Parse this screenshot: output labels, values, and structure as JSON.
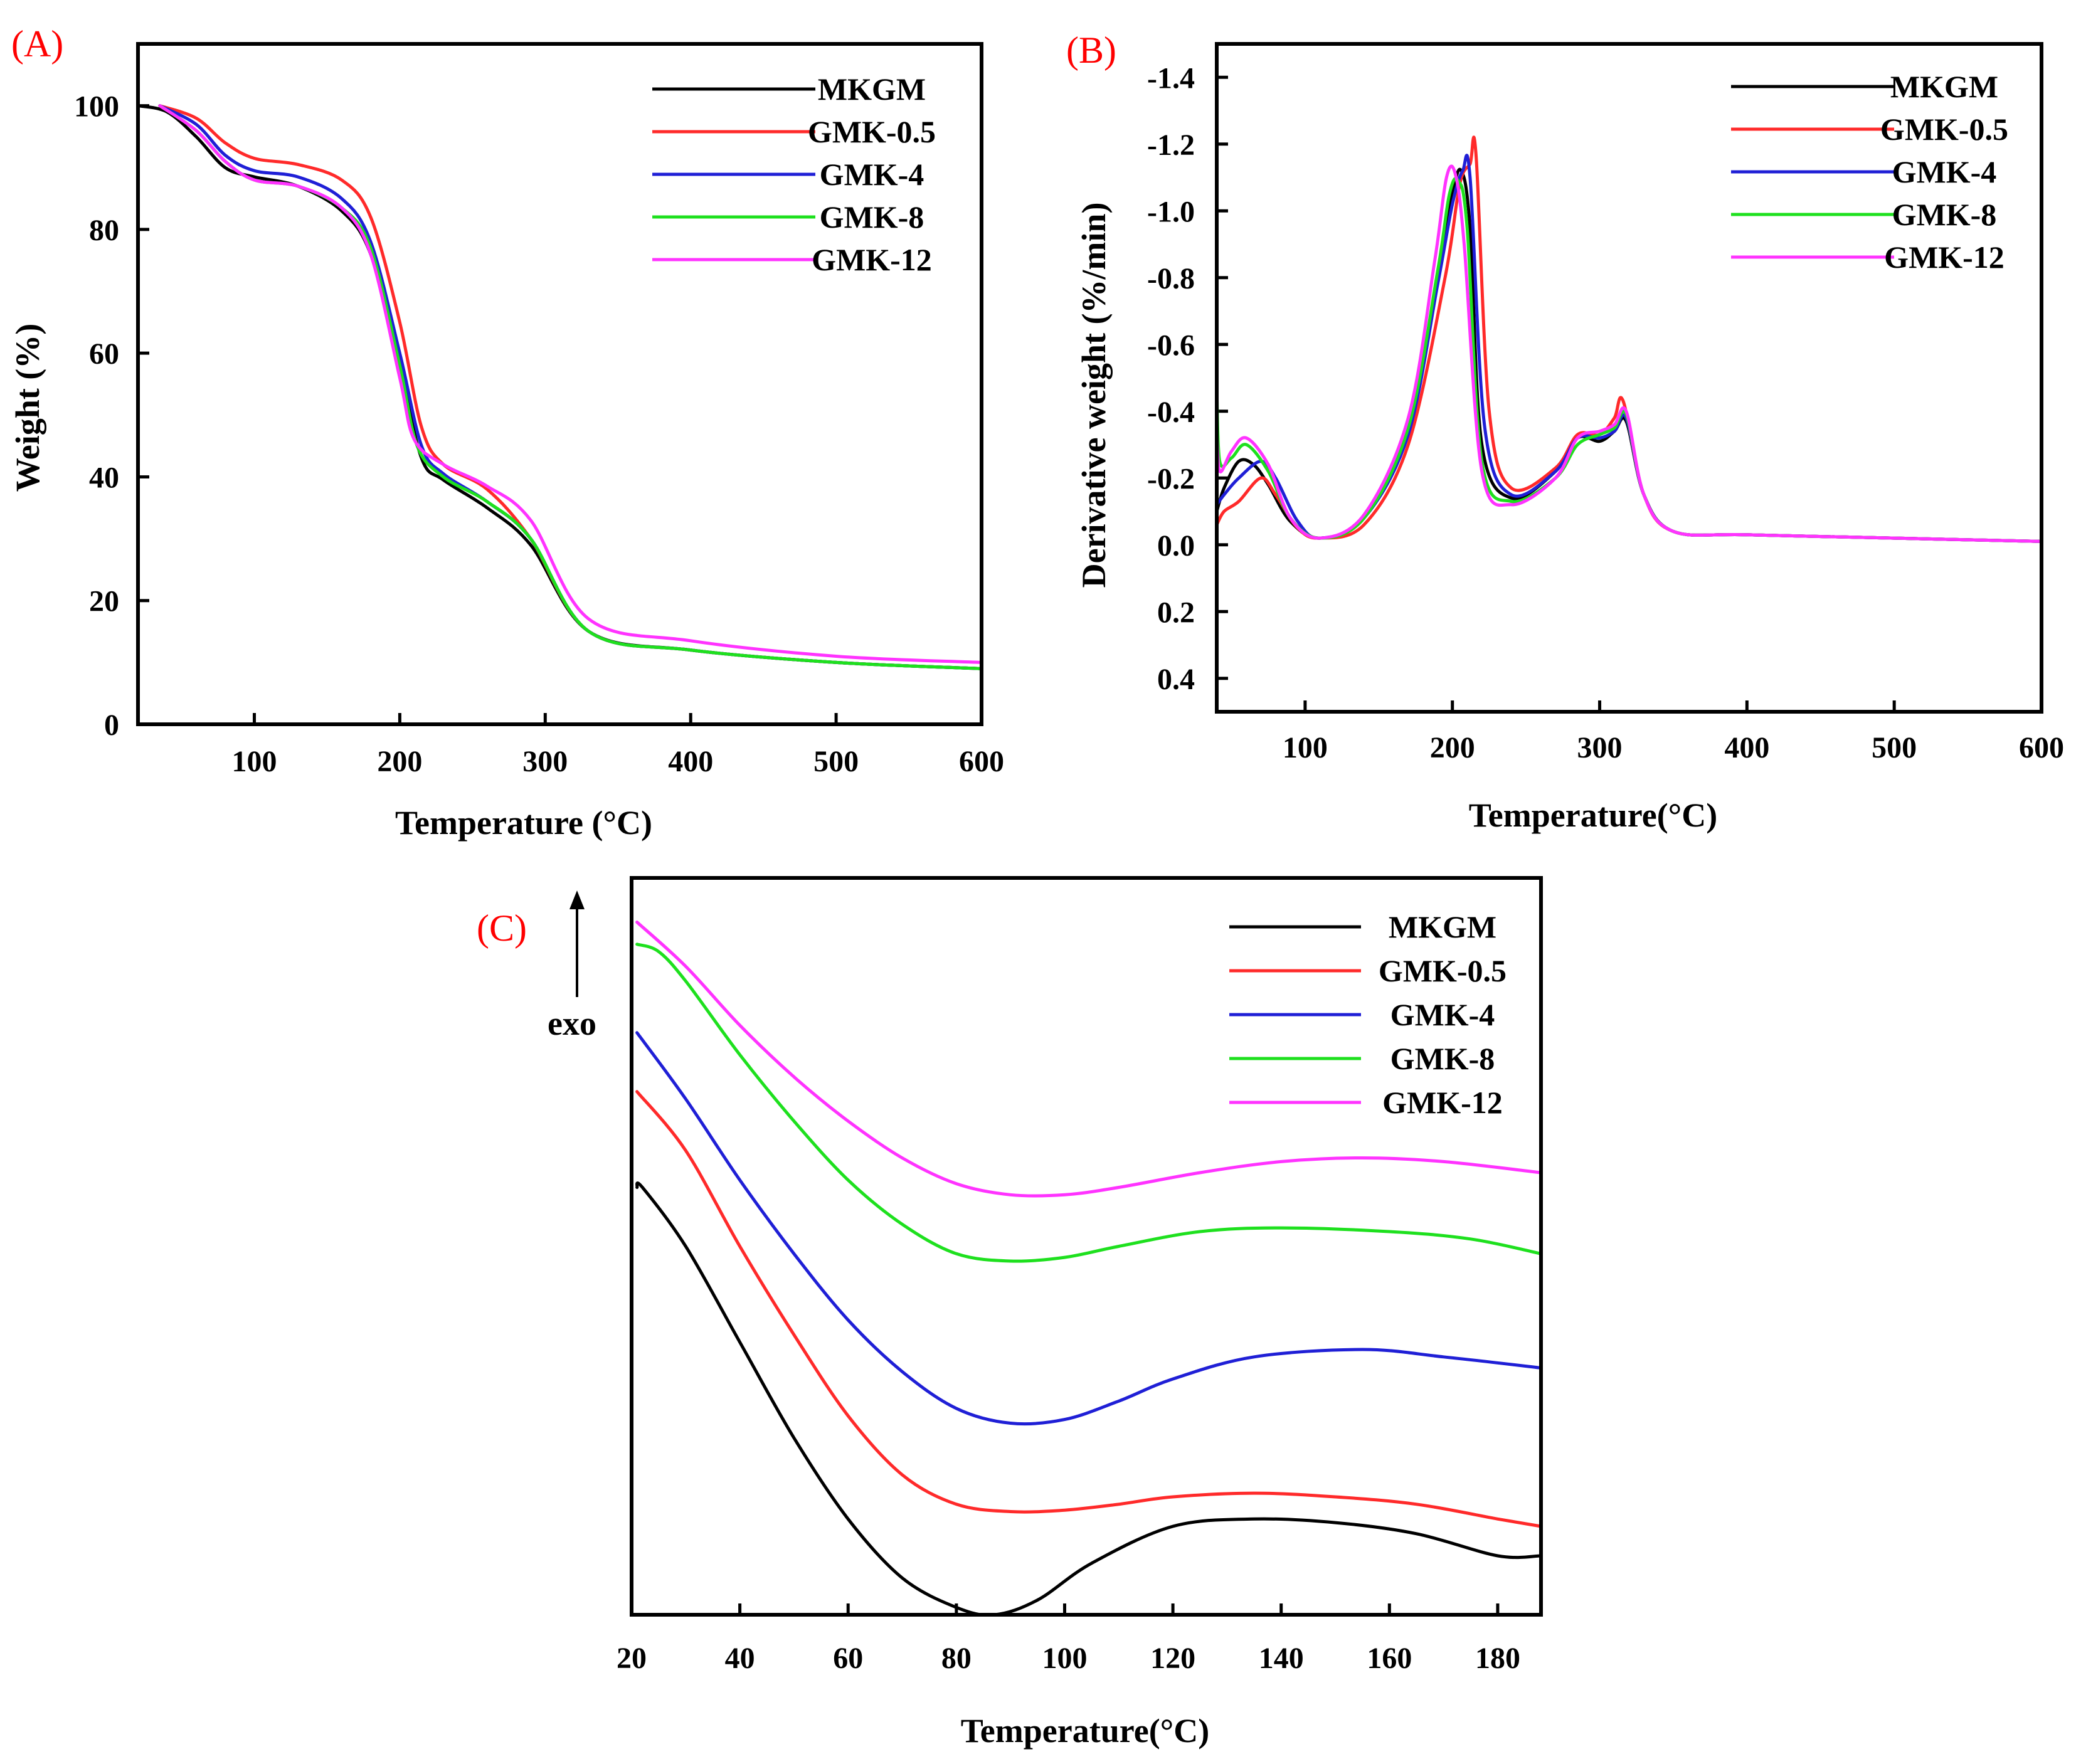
{
  "colors": {
    "MKGM": "#000000",
    "GMK-0.5": "#ff2a2a",
    "GMK-4": "#1f1fd6",
    "GMK-8": "#1ee01e",
    "GMK-12": "#ff33ff",
    "panel_label": "#ff0000"
  },
  "chart_data": [
    {
      "id": "A",
      "type": "line",
      "panel_label": "(A)",
      "title": "",
      "xlabel": "Temperature (°C)",
      "ylabel": "Weight (%)",
      "xlim": [
        20,
        600
      ],
      "ylim": [
        0,
        110
      ],
      "xticks": [
        "100",
        "200",
        "300",
        "400",
        "500",
        "600"
      ],
      "yticks": [
        "0",
        "20",
        "40",
        "60",
        "80",
        "100"
      ],
      "xtick_values": [
        100,
        200,
        300,
        400,
        500,
        600
      ],
      "ytick_values": [
        0,
        20,
        40,
        60,
        80,
        100
      ],
      "legend": [
        "MKGM",
        "GMK-0.5",
        "GMK-4",
        "GMK-8",
        "GMK-12"
      ],
      "legend_position": "top-right",
      "series": [
        {
          "name": "MKGM",
          "x": [
            20,
            40,
            60,
            80,
            100,
            130,
            160,
            180,
            200,
            215,
            230,
            260,
            290,
            330,
            400,
            500,
            600
          ],
          "y": [
            100,
            99,
            95,
            90,
            88.5,
            87,
            83,
            76,
            58,
            43,
            39.5,
            35,
            29,
            15,
            12,
            10,
            9
          ]
        },
        {
          "name": "GMK-0.5",
          "x": [
            35,
            60,
            80,
            100,
            130,
            160,
            180,
            200,
            215,
            230,
            260,
            290,
            330,
            400,
            500,
            600
          ],
          "y": [
            100,
            98,
            94,
            91.5,
            90.5,
            88,
            82,
            65,
            48,
            42,
            38,
            30,
            15,
            12,
            10,
            9
          ]
        },
        {
          "name": "GMK-4",
          "x": [
            35,
            60,
            80,
            100,
            130,
            160,
            180,
            200,
            215,
            230,
            260,
            290,
            330,
            400,
            500,
            600
          ],
          "y": [
            100,
            97,
            92,
            89.5,
            88.5,
            85,
            78,
            60,
            45,
            40.5,
            36,
            30,
            15,
            12,
            10,
            9
          ]
        },
        {
          "name": "GMK-8",
          "x": [
            35,
            60,
            80,
            100,
            130,
            160,
            180,
            200,
            212,
            230,
            260,
            290,
            330,
            400,
            500,
            600
          ],
          "y": [
            100,
            96,
            91,
            88,
            87,
            83.5,
            77,
            58,
            45,
            40,
            36,
            30,
            15,
            12,
            10,
            9
          ]
        },
        {
          "name": "GMK-12",
          "x": [
            35,
            60,
            80,
            100,
            130,
            160,
            180,
            200,
            210,
            230,
            260,
            290,
            330,
            400,
            500,
            600
          ],
          "y": [
            100,
            96,
            91,
            88,
            87,
            83.5,
            76,
            56,
            46,
            42,
            38.5,
            33,
            17,
            13.5,
            11,
            10
          ]
        }
      ]
    },
    {
      "id": "B",
      "type": "line",
      "panel_label": "(B)",
      "title": "",
      "xlabel": "Temperature(°C)",
      "ylabel": "Derivative weight (%/min)",
      "xlim": [
        40,
        600
      ],
      "ylim": [
        -1.5,
        0.5
      ],
      "y_inverted": true,
      "xticks": [
        "100",
        "200",
        "300",
        "400",
        "500",
        "600"
      ],
      "yticks": [
        "-1.4",
        "-1.2",
        "-1.0",
        "-0.8",
        "-0.6",
        "-0.4",
        "-0.2",
        "0.0",
        "0.2",
        "0.4"
      ],
      "xtick_values": [
        100,
        200,
        300,
        400,
        500,
        600
      ],
      "ytick_values": [
        -1.4,
        -1.2,
        -1.0,
        -0.8,
        -0.6,
        -0.4,
        -0.2,
        0.0,
        0.2,
        0.4
      ],
      "legend": [
        "MKGM",
        "GMK-0.5",
        "GMK-4",
        "GMK-8",
        "GMK-12"
      ],
      "legend_position": "top-right",
      "series": [
        {
          "name": "MKGM",
          "x": [
            40,
            45,
            55,
            65,
            75,
            90,
            110,
            140,
            170,
            190,
            200,
            206,
            212,
            220,
            240,
            270,
            285,
            300,
            310,
            318,
            330,
            350,
            400,
            500,
            600
          ],
          "y": [
            -0.1,
            -0.17,
            -0.25,
            -0.24,
            -0.18,
            -0.07,
            -0.02,
            -0.08,
            -0.35,
            -0.8,
            -1.05,
            -1.12,
            -0.95,
            -0.3,
            -0.14,
            -0.22,
            -0.32,
            -0.31,
            -0.34,
            -0.37,
            -0.15,
            -0.04,
            -0.03,
            -0.02,
            -0.01
          ]
        },
        {
          "name": "GMK-0.5",
          "x": [
            40,
            45,
            55,
            70,
            80,
            95,
            110,
            140,
            170,
            195,
            205,
            212,
            216,
            225,
            240,
            270,
            285,
            300,
            310,
            316,
            330,
            350,
            400,
            500,
            600
          ],
          "y": [
            -0.06,
            -0.1,
            -0.13,
            -0.2,
            -0.15,
            -0.05,
            -0.02,
            -0.06,
            -0.3,
            -0.8,
            -1.08,
            -1.14,
            -1.17,
            -0.4,
            -0.17,
            -0.23,
            -0.33,
            -0.33,
            -0.38,
            -0.43,
            -0.15,
            -0.04,
            -0.03,
            -0.02,
            -0.01
          ]
        },
        {
          "name": "GMK-4",
          "x": [
            40,
            45,
            55,
            70,
            80,
            95,
            110,
            140,
            170,
            190,
            200,
            207,
            212,
            222,
            240,
            270,
            285,
            300,
            310,
            318,
            330,
            350,
            400,
            500,
            600
          ],
          "y": [
            -0.12,
            -0.15,
            -0.2,
            -0.25,
            -0.2,
            -0.07,
            -0.02,
            -0.08,
            -0.33,
            -0.78,
            -1.02,
            -1.12,
            -1.1,
            -0.35,
            -0.15,
            -0.22,
            -0.32,
            -0.32,
            -0.34,
            -0.38,
            -0.15,
            -0.04,
            -0.03,
            -0.02,
            -0.01
          ]
        },
        {
          "name": "GMK-8",
          "x": [
            40,
            42,
            50,
            60,
            75,
            90,
            110,
            140,
            170,
            190,
            198,
            204,
            210,
            220,
            240,
            270,
            285,
            300,
            310,
            318,
            330,
            350,
            400,
            500,
            600
          ],
          "y": [
            -0.48,
            -0.25,
            -0.26,
            -0.3,
            -0.22,
            -0.08,
            -0.02,
            -0.08,
            -0.35,
            -0.82,
            -1.05,
            -1.09,
            -0.95,
            -0.25,
            -0.13,
            -0.2,
            -0.3,
            -0.33,
            -0.35,
            -0.39,
            -0.15,
            -0.04,
            -0.03,
            -0.02,
            -0.01
          ]
        },
        {
          "name": "GMK-12",
          "x": [
            40,
            42,
            50,
            60,
            75,
            90,
            110,
            140,
            170,
            188,
            196,
            202,
            208,
            220,
            240,
            270,
            285,
            300,
            310,
            318,
            330,
            350,
            400,
            500,
            600
          ],
          "y": [
            -0.35,
            -0.22,
            -0.28,
            -0.32,
            -0.24,
            -0.08,
            -0.02,
            -0.09,
            -0.38,
            -0.85,
            -1.1,
            -1.11,
            -0.9,
            -0.22,
            -0.12,
            -0.2,
            -0.32,
            -0.34,
            -0.36,
            -0.4,
            -0.15,
            -0.04,
            -0.03,
            -0.02,
            -0.01
          ]
        }
      ]
    },
    {
      "id": "C",
      "type": "line",
      "panel_label": "(C)",
      "title": "",
      "xlabel": "Temperature(°C)",
      "ylabel": "",
      "y_annotation": "exo",
      "xlim": [
        20,
        188
      ],
      "ylim": [
        0,
        100
      ],
      "xticks": [
        "20",
        "40",
        "60",
        "80",
        "100",
        "120",
        "140",
        "160",
        "180"
      ],
      "xtick_values": [
        20,
        40,
        60,
        80,
        100,
        120,
        140,
        160,
        180
      ],
      "yticks": [],
      "legend": [
        "MKGM",
        "GMK-0.5",
        "GMK-4",
        "GMK-8",
        "GMK-12"
      ],
      "legend_position": "top-right",
      "series": [
        {
          "name": "MKGM",
          "x": [
            21,
            22,
            30,
            40,
            50,
            60,
            70,
            80,
            87,
            95,
            105,
            120,
            135,
            150,
            165,
            180,
            188
          ],
          "y": [
            58,
            58,
            50,
            37,
            24,
            13,
            5,
            1,
            0,
            2,
            7,
            12,
            13,
            12.5,
            11,
            8,
            8
          ]
        },
        {
          "name": "GMK-0.5",
          "x": [
            21,
            30,
            40,
            50,
            60,
            70,
            80,
            90,
            100,
            110,
            120,
            135,
            150,
            165,
            180,
            188
          ],
          "y": [
            71,
            63,
            50,
            38,
            27,
            19,
            15,
            14,
            14.2,
            15,
            16,
            16.5,
            16,
            15,
            13,
            12
          ]
        },
        {
          "name": "GMK-4",
          "x": [
            21,
            30,
            40,
            50,
            60,
            70,
            80,
            90,
            100,
            110,
            120,
            135,
            155,
            170,
            188
          ],
          "y": [
            79,
            70,
            59,
            49,
            40,
            33,
            28,
            26,
            26.5,
            29,
            32,
            35,
            36,
            35,
            33.5
          ]
        },
        {
          "name": "GMK-8",
          "x": [
            21,
            25,
            30,
            40,
            50,
            60,
            70,
            80,
            90,
            100,
            110,
            125,
            140,
            160,
            175,
            188
          ],
          "y": [
            91,
            90,
            86,
            76,
            67,
            59,
            53,
            49,
            48,
            48.5,
            50,
            52,
            52.5,
            52,
            51,
            49
          ]
        },
        {
          "name": "GMK-12",
          "x": [
            21,
            30,
            40,
            50,
            60,
            70,
            80,
            90,
            100,
            110,
            125,
            140,
            155,
            170,
            188
          ],
          "y": [
            94,
            88,
            80,
            73,
            67,
            62,
            58.5,
            57,
            57,
            58,
            60,
            61.5,
            62,
            61.5,
            60
          ]
        }
      ]
    }
  ]
}
